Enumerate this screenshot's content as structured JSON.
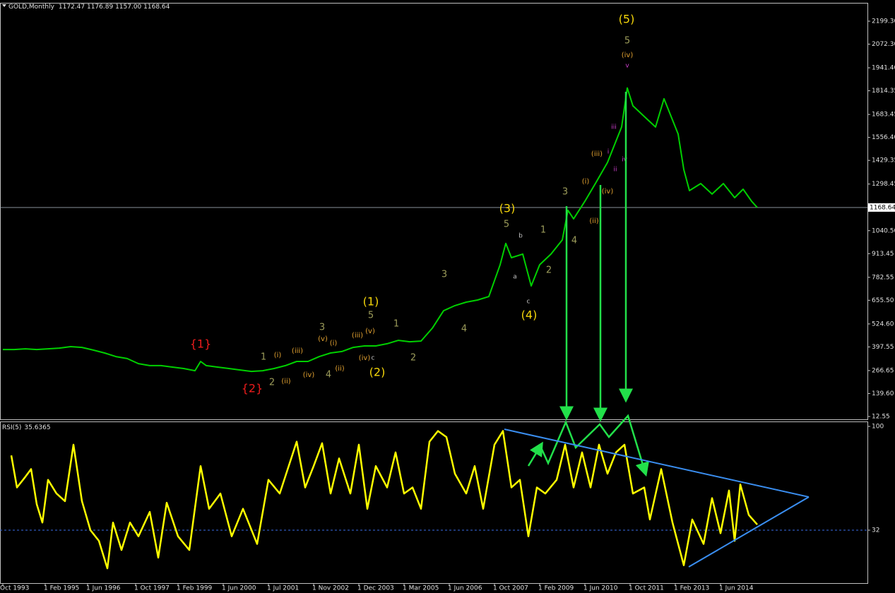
{
  "chart_data": [
    {
      "type": "line",
      "title": "GOLD,Monthly",
      "subtitle": "1172.47 1176.89 1157.00 1168.64",
      "color": "#00d000",
      "x": [
        0,
        4,
        8,
        12,
        16,
        20,
        24,
        28,
        32,
        36,
        40,
        44,
        48,
        52,
        56,
        60,
        64,
        68,
        70,
        72,
        76,
        80,
        84,
        88,
        92,
        96,
        100,
        104,
        108,
        112,
        116,
        120,
        124,
        128,
        132,
        136,
        140,
        144,
        148,
        152,
        156,
        160,
        164,
        168,
        172,
        176,
        178,
        180,
        184,
        187,
        190,
        194,
        198,
        200,
        202,
        206,
        210,
        214,
        217,
        219,
        221,
        223,
        227,
        231,
        234,
        237,
        239,
        241,
        243,
        247,
        251,
        255,
        259,
        262,
        265,
        267
      ],
      "values": [
        383,
        383,
        387,
        383,
        387,
        391,
        399,
        395,
        380,
        364,
        344,
        333,
        305,
        294,
        294,
        286,
        278,
        266,
        317,
        294,
        286,
        278,
        270,
        262,
        266,
        278,
        294,
        317,
        317,
        344,
        364,
        372,
        395,
        403,
        403,
        415,
        434,
        426,
        430,
        501,
        598,
        626,
        645,
        657,
        676,
        852,
        970,
        891,
        911,
        735,
        852,
        911,
        989,
        1153,
        1106,
        1203,
        1309,
        1418,
        1536,
        1614,
        1830,
        1731,
        1672,
        1614,
        1770,
        1653,
        1575,
        1379,
        1262,
        1301,
        1243,
        1301,
        1223,
        1270,
        1203,
        1168.64
      ],
      "xlim": [
        -1,
        306
      ],
      "ylim": [
        -3.07,
        2300.83
      ],
      "yticks": [
        {
          "value": 2199.3,
          "label": "2199.30"
        },
        {
          "value": 2072.3,
          "label": "2072.30"
        },
        {
          "value": 1941.4,
          "label": "1941.40"
        },
        1814.35,
        1683.45,
        {
          "value": 1556.4,
          "label": "1556.40"
        },
        1429.35,
        1298.45,
        {
          "value": 1040.5,
          "label": "1040.50"
        },
        913.45,
        782.55,
        {
          "value": 655.5,
          "label": "655.50"
        },
        {
          "value": 524.6,
          "label": "524.60"
        },
        397.55,
        266.65,
        {
          "value": 139.6,
          "label": "139.60"
        },
        12.55
      ],
      "last_value": 1168.64,
      "annotations": [
        "(5)",
        "(3)",
        "(1)",
        "(4)",
        "(2)",
        "{1}",
        "{2}",
        "5",
        "5",
        "3",
        "1",
        "4",
        "2",
        "3",
        "4",
        "1",
        "2",
        "5",
        "3",
        "4",
        "1",
        "2",
        "a",
        "b",
        "c",
        "c",
        "(iv)",
        "(iii)",
        "(i)",
        "(iv)",
        "(ii)",
        "(i)",
        "(iii)",
        "(ii)",
        "(iv)",
        "(v)",
        "(i)",
        "(ii)",
        "(iii)",
        "(v)",
        "(iv)",
        "v",
        "iii",
        "i",
        "ii",
        "iv"
      ]
    },
    {
      "type": "line",
      "title": "RSI(5)",
      "color": "#ffff00",
      "x": [
        3,
        5,
        8,
        10,
        12,
        14,
        16,
        19,
        22,
        25,
        28,
        31,
        34,
        37,
        39,
        42,
        45,
        48,
        52,
        55,
        58,
        62,
        66,
        70,
        73,
        77,
        81,
        85,
        90,
        94,
        98,
        104,
        107,
        110,
        113,
        116,
        119,
        123,
        126,
        129,
        132,
        136,
        139,
        142,
        145,
        148,
        151,
        154,
        157,
        160,
        164,
        167,
        170,
        174,
        177,
        180,
        183,
        186,
        189,
        192,
        196,
        199,
        202,
        205,
        208,
        211,
        214,
        217,
        220,
        223,
        227,
        229,
        233,
        237,
        241,
        244,
        248,
        251,
        254,
        257,
        259,
        261,
        264,
        267
      ],
      "values": [
        81,
        60,
        67,
        72,
        49,
        37,
        65,
        56,
        51,
        88,
        51,
        32,
        25,
        7,
        37,
        19,
        37,
        28,
        44,
        14,
        50,
        28,
        19,
        74,
        46,
        56,
        28,
        46,
        23,
        65,
        56,
        90,
        60,
        74,
        89,
        56,
        79,
        56,
        88,
        46,
        74,
        60,
        83,
        56,
        60,
        46,
        90,
        97,
        93,
        69,
        56,
        74,
        46,
        88,
        97,
        60,
        65,
        28,
        60,
        56,
        65,
        88,
        60,
        83,
        60,
        88,
        69,
        83,
        88,
        56,
        60,
        39,
        72,
        37,
        9,
        39,
        23,
        53,
        30,
        58,
        25,
        62,
        42,
        35.6365
      ],
      "xlim": [
        -1,
        306
      ],
      "ylim": [
        -2.69,
        103.24
      ],
      "yticks": [
        100,
        32
      ],
      "levels": [
        32
      ],
      "xticks": [
        {
          "value": 0,
          "label": "Oct 1993"
        },
        {
          "value": 15,
          "label": "1 Feb 1995"
        },
        {
          "value": 30,
          "label": "1 Jun 1996"
        },
        {
          "value": 47,
          "label": "1 Oct 1997"
        },
        {
          "value": 62,
          "label": "1 Feb 1999"
        },
        {
          "value": 78,
          "label": "1 Jun 2000"
        },
        {
          "value": 94,
          "label": "1 Jul 2001"
        },
        {
          "value": 110,
          "label": "1 Nov 2002"
        },
        {
          "value": 126,
          "label": "1 Dec 2003"
        },
        {
          "value": 142,
          "label": "1 Mar 2005"
        },
        {
          "value": 158,
          "label": "1 Jun 2006"
        },
        {
          "value": 174,
          "label": "1 Oct 2007"
        },
        {
          "value": 190,
          "label": "1 Feb 2009"
        },
        {
          "value": 206,
          "label": "1 Jun 2010"
        },
        {
          "value": 222,
          "label": "1 Oct 2011"
        },
        {
          "value": 238,
          "label": "1 Feb 2013"
        },
        {
          "value": 254,
          "label": "1 Jun 2014"
        }
      ]
    }
  ]
}
